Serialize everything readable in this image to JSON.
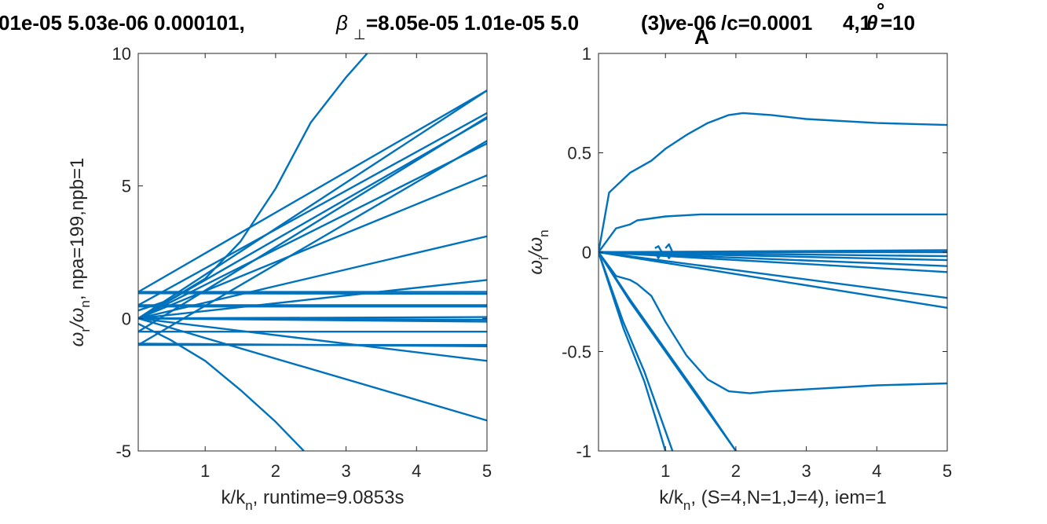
{
  "title": "01e-05  5.03e-06  0.000101, β⊥=8.05e-05  1.01e-05  5.03e-06  0.000101, θ°=10",
  "title_parts": {
    "left": "01e-05  5.03e-06  0.000101,",
    "beta": "β",
    "beta_sub": "⊥",
    "mid": "=8.05e-05  1.01e-05  5.0",
    "ov1": "(3)",
    "va": "v",
    "va_sub": "A",
    "ov2": "e-06",
    "ov3": "/c=0.0001",
    "end": "4,1",
    "theta": "θ",
    "deg": "°",
    "theta_val": "=10"
  },
  "line_color": "#0072BD",
  "chart_data": [
    {
      "type": "line",
      "panel": "left",
      "xlabel": "k/kn, runtime=9.0853s",
      "xlabel_parts": {
        "a": "k/k",
        "sub": "n",
        "b": ", runtime=9.0853s"
      },
      "ylabel": "ωr/ωn, npa=199,npb=1",
      "ylabel_parts": {
        "a": "ω",
        "sub1": "r",
        "b": "/ω",
        "sub2": "n",
        "c": ", npa=199,npb=1"
      },
      "xlim": [
        0.05,
        5
      ],
      "ylim": [
        -5,
        10
      ],
      "xticks": [
        1,
        2,
        3,
        4,
        5
      ],
      "yticks": [
        -5,
        0,
        5,
        10
      ],
      "grid": false,
      "series": [
        {
          "x": [
            0.05,
            0.5,
            1,
            1.5,
            2,
            2.5,
            3,
            3.3
          ],
          "y": [
            0.3,
            0.7,
            1.5,
            2.9,
            4.9,
            7.4,
            9.1,
            10
          ]
        },
        {
          "x": [
            0.05,
            0.5,
            1,
            1.5,
            2,
            2.4
          ],
          "y": [
            -0.2,
            -0.8,
            -1.6,
            -2.7,
            -3.9,
            -5
          ]
        },
        {
          "x": [
            0.05,
            5
          ],
          "y": [
            1.0,
            8.6
          ]
        },
        {
          "x": [
            0.05,
            5
          ],
          "y": [
            0.0,
            8.6
          ]
        },
        {
          "x": [
            0.05,
            5
          ],
          "y": [
            0.5,
            7.75
          ]
        },
        {
          "x": [
            0.05,
            5
          ],
          "y": [
            -0.5,
            7.6
          ]
        },
        {
          "x": [
            0.05,
            5
          ],
          "y": [
            0.0,
            7.55
          ]
        },
        {
          "x": [
            0.05,
            5
          ],
          "y": [
            -1.0,
            6.7
          ]
        },
        {
          "x": [
            0.05,
            5
          ],
          "y": [
            0.0,
            6.6
          ]
        },
        {
          "x": [
            0.05,
            5
          ],
          "y": [
            0.0,
            5.4
          ]
        },
        {
          "x": [
            0.05,
            5
          ],
          "y": [
            0.0,
            3.1
          ]
        },
        {
          "x": [
            0.05,
            5
          ],
          "y": [
            0.0,
            1.45
          ]
        },
        {
          "x": [
            0.05,
            5
          ],
          "y": [
            1.0,
            1.0
          ]
        },
        {
          "x": [
            0.05,
            5
          ],
          "y": [
            0.95,
            0.93
          ]
        },
        {
          "x": [
            0.05,
            5
          ],
          "y": [
            0.5,
            0.5
          ]
        },
        {
          "x": [
            0.05,
            5
          ],
          "y": [
            0.45,
            0.45
          ]
        },
        {
          "x": [
            0.05,
            5
          ],
          "y": [
            0.0,
            0.05
          ]
        },
        {
          "x": [
            0.05,
            5
          ],
          "y": [
            0.0,
            -0.05
          ]
        },
        {
          "x": [
            0.05,
            5
          ],
          "y": [
            0.0,
            -0.12
          ]
        },
        {
          "x": [
            0.05,
            5
          ],
          "y": [
            -0.5,
            -0.5
          ]
        },
        {
          "x": [
            0.05,
            5
          ],
          "y": [
            -1.0,
            -1.0
          ]
        },
        {
          "x": [
            0.05,
            5
          ],
          "y": [
            -0.95,
            -1.05
          ]
        },
        {
          "x": [
            0.05,
            5
          ],
          "y": [
            0.0,
            -1.6
          ]
        },
        {
          "x": [
            0.05,
            5
          ],
          "y": [
            0.0,
            -3.85
          ]
        }
      ]
    },
    {
      "type": "line",
      "panel": "right",
      "xlabel": "k/kn, (S=4,N=1,J=4), iem=1",
      "xlabel_parts": {
        "a": "k/k",
        "sub": "n",
        "b": ", (S=4,N=1,J=4), iem=1"
      },
      "ylabel": "ωi/ωn",
      "ylabel_parts": {
        "a": "ω",
        "sub1": "i",
        "b": "/ω",
        "sub2": "n",
        "c": ""
      },
      "xlim": [
        0.05,
        5
      ],
      "ylim": [
        -1,
        1
      ],
      "xticks": [
        1,
        2,
        3,
        4,
        5
      ],
      "yticks": [
        -1,
        -0.5,
        0,
        0.5,
        1
      ],
      "yticklabels": [
        "-1",
        "-0.5",
        "0",
        "0.5",
        "1"
      ],
      "grid": false,
      "series": [
        {
          "x": [
            0.05,
            0.2,
            0.5,
            0.8,
            1.0,
            1.3,
            1.6,
            1.9,
            2.1,
            2.5,
            3,
            4,
            5
          ],
          "y": [
            0.0,
            0.3,
            0.4,
            0.46,
            0.52,
            0.59,
            0.65,
            0.69,
            0.7,
            0.69,
            0.67,
            0.65,
            0.64
          ]
        },
        {
          "x": [
            0.05,
            0.3,
            0.5,
            0.6,
            0.8,
            1.0,
            1.5,
            2,
            3,
            4,
            5
          ],
          "y": [
            0.0,
            0.12,
            0.14,
            0.16,
            0.17,
            0.18,
            0.19,
            0.19,
            0.19,
            0.19,
            0.19
          ]
        },
        {
          "x": [
            0.05,
            0.3,
            0.5,
            0.6,
            0.8,
            1.0,
            1.3,
            1.6,
            1.9,
            2.2,
            2.5,
            3,
            4,
            5
          ],
          "y": [
            0.0,
            -0.12,
            -0.14,
            -0.16,
            -0.22,
            -0.35,
            -0.52,
            -0.64,
            -0.7,
            -0.71,
            -0.7,
            -0.69,
            -0.67,
            -0.66
          ]
        },
        {
          "x": [
            0.05,
            5
          ],
          "y": [
            0.0,
            -0.28
          ]
        },
        {
          "x": [
            0.05,
            5
          ],
          "y": [
            0.0,
            -0.23
          ]
        },
        {
          "x": [
            0.05,
            5
          ],
          "y": [
            0.0,
            -0.1
          ]
        },
        {
          "x": [
            0.05,
            5
          ],
          "y": [
            0.0,
            -0.07
          ]
        },
        {
          "x": [
            0.05,
            5
          ],
          "y": [
            0.0,
            -0.04
          ]
        },
        {
          "x": [
            0.05,
            5
          ],
          "y": [
            0.0,
            0.0
          ]
        },
        {
          "x": [
            0.05,
            5
          ],
          "y": [
            0.0,
            0.01
          ]
        },
        {
          "x": [
            0.05,
            5
          ],
          "y": [
            0.0,
            -0.02
          ]
        },
        {
          "x": [
            0.05,
            0.5,
            1.0,
            1.5,
            2.0
          ],
          "y": [
            0.0,
            -0.25,
            -0.5,
            -0.75,
            -1.0
          ]
        },
        {
          "x": [
            0.05,
            0.5,
            1.0,
            1.5,
            2.0
          ],
          "y": [
            0.0,
            -0.24,
            -0.49,
            -0.74,
            -1.0
          ]
        },
        {
          "x": [
            0.05,
            0.4,
            0.7,
            1.0,
            1.1
          ],
          "y": [
            0.0,
            -0.35,
            -0.6,
            -0.9,
            -1.0
          ]
        },
        {
          "x": [
            0.05,
            0.4,
            0.7,
            0.9,
            1.0
          ],
          "y": [
            0.0,
            -0.38,
            -0.65,
            -0.88,
            -1.0
          ]
        },
        {
          "x": [
            0.85,
            0.9,
            0.95,
            0.9,
            0.85
          ],
          "y": [
            0.02,
            0.03,
            0.0,
            -0.03,
            0.0
          ]
        },
        {
          "x": [
            1.0,
            1.05,
            1.1,
            1.05,
            1.0
          ],
          "y": [
            0.02,
            0.04,
            0.0,
            -0.03,
            0.0
          ]
        }
      ]
    }
  ]
}
